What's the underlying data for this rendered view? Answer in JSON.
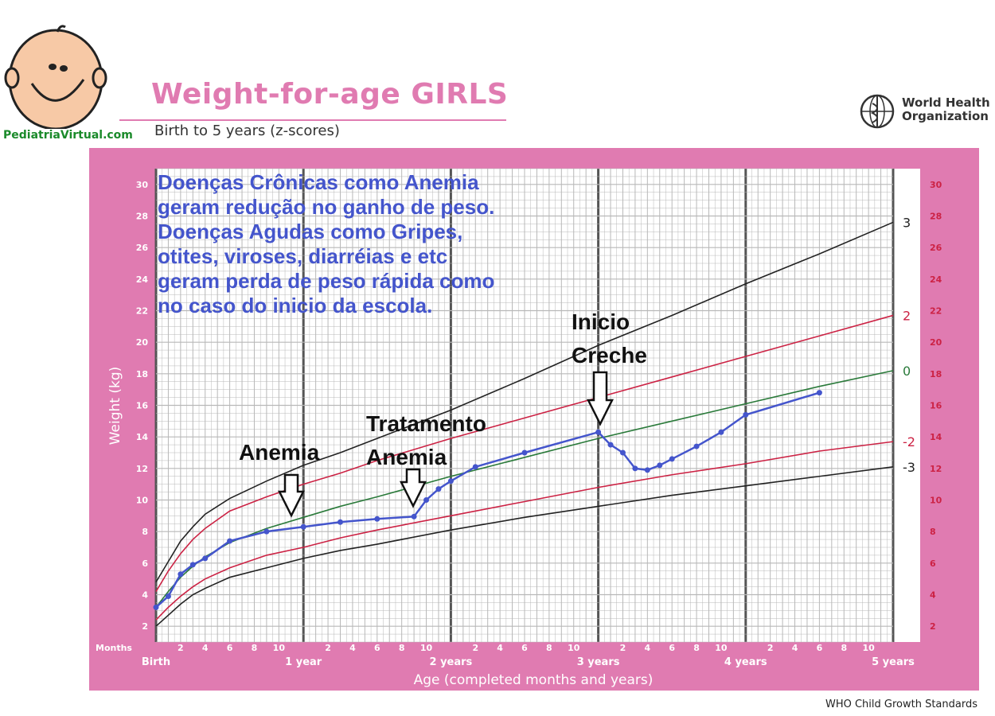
{
  "header": {
    "title": "Weight-for-age GIRLS",
    "subtitle": "Birth to 5 years (z-scores)",
    "site_name": "PediatriaVirtual.com",
    "who_line1": "World Health",
    "who_line2": "Organization"
  },
  "footer": {
    "text": "WHO Child Growth Standards"
  },
  "colors": {
    "frame": "#e07bb1",
    "plot_bg": "#ffffff",
    "grid": "#b8b8b8",
    "zscore_black": "#222222",
    "zscore_red": "#cc2244",
    "zscore_green": "#2a7a3a",
    "child_line": "#4455cc",
    "annotation_text": "#4455cc"
  },
  "chart_data": {
    "type": "line",
    "title": "Weight-for-age GIRLS",
    "subtitle": "Birth to 5 years (z-scores)",
    "xlabel": "Age (completed months and years)",
    "ylabel": "Weight (kg)",
    "months_label": "Months",
    "xlim": [
      0,
      60
    ],
    "ylim": [
      1,
      31
    ],
    "y_ticks": [
      2,
      4,
      6,
      8,
      10,
      12,
      14,
      16,
      18,
      20,
      22,
      24,
      26,
      28,
      30
    ],
    "x_month_ticks": [
      {
        "m": 2,
        "label": "2"
      },
      {
        "m": 4,
        "label": "4"
      },
      {
        "m": 6,
        "label": "6"
      },
      {
        "m": 8,
        "label": "8"
      },
      {
        "m": 10,
        "label": "10"
      },
      {
        "m": 14,
        "label": "2"
      },
      {
        "m": 16,
        "label": "4"
      },
      {
        "m": 18,
        "label": "6"
      },
      {
        "m": 20,
        "label": "8"
      },
      {
        "m": 22,
        "label": "10"
      },
      {
        "m": 26,
        "label": "2"
      },
      {
        "m": 28,
        "label": "4"
      },
      {
        "m": 30,
        "label": "6"
      },
      {
        "m": 32,
        "label": "8"
      },
      {
        "m": 34,
        "label": "10"
      },
      {
        "m": 38,
        "label": "2"
      },
      {
        "m": 40,
        "label": "4"
      },
      {
        "m": 42,
        "label": "6"
      },
      {
        "m": 44,
        "label": "8"
      },
      {
        "m": 46,
        "label": "10"
      },
      {
        "m": 50,
        "label": "2"
      },
      {
        "m": 52,
        "label": "4"
      },
      {
        "m": 54,
        "label": "6"
      },
      {
        "m": 56,
        "label": "8"
      },
      {
        "m": 58,
        "label": "10"
      }
    ],
    "x_year_ticks": [
      {
        "m": 0,
        "label": "Birth"
      },
      {
        "m": 12,
        "label": "1 year"
      },
      {
        "m": 24,
        "label": "2 years"
      },
      {
        "m": 36,
        "label": "3 years"
      },
      {
        "m": 48,
        "label": "4 years"
      },
      {
        "m": 60,
        "label": "5 years"
      }
    ],
    "zscore_curves": [
      {
        "name": "3",
        "color": "#222222",
        "x": [
          0,
          1,
          2,
          3,
          4,
          6,
          9,
          12,
          15,
          18,
          24,
          30,
          36,
          42,
          48,
          54,
          60
        ],
        "y": [
          4.8,
          6.1,
          7.4,
          8.3,
          9.1,
          10.1,
          11.2,
          12.2,
          13.0,
          13.9,
          15.7,
          17.7,
          19.8,
          21.7,
          23.7,
          25.6,
          27.6
        ]
      },
      {
        "name": "2",
        "color": "#cc2244",
        "x": [
          0,
          1,
          2,
          3,
          4,
          6,
          9,
          12,
          15,
          18,
          24,
          30,
          36,
          42,
          48,
          54,
          60
        ],
        "y": [
          4.2,
          5.5,
          6.6,
          7.5,
          8.2,
          9.3,
          10.2,
          11.0,
          11.7,
          12.5,
          13.9,
          15.2,
          16.5,
          17.8,
          19.1,
          20.4,
          21.7
        ]
      },
      {
        "name": "0",
        "color": "#2a7a3a",
        "x": [
          0,
          1,
          2,
          3,
          4,
          6,
          9,
          12,
          15,
          18,
          24,
          30,
          36,
          42,
          48,
          54,
          60
        ],
        "y": [
          3.2,
          4.2,
          5.1,
          5.8,
          6.4,
          7.3,
          8.2,
          8.9,
          9.6,
          10.2,
          11.5,
          12.7,
          13.9,
          15.0,
          16.1,
          17.2,
          18.2
        ]
      },
      {
        "name": "-2",
        "color": "#cc2244",
        "x": [
          0,
          1,
          2,
          3,
          4,
          6,
          9,
          12,
          15,
          18,
          24,
          30,
          36,
          42,
          48,
          54,
          60
        ],
        "y": [
          2.4,
          3.2,
          3.9,
          4.5,
          5.0,
          5.7,
          6.5,
          7.0,
          7.6,
          8.1,
          9.0,
          9.9,
          10.8,
          11.6,
          12.3,
          13.1,
          13.7
        ]
      },
      {
        "name": "-3",
        "color": "#222222",
        "x": [
          0,
          1,
          2,
          3,
          4,
          6,
          9,
          12,
          15,
          18,
          24,
          30,
          36,
          42,
          48,
          54,
          60
        ],
        "y": [
          2.0,
          2.7,
          3.4,
          4.0,
          4.4,
          5.1,
          5.7,
          6.3,
          6.8,
          7.2,
          8.1,
          8.9,
          9.6,
          10.3,
          10.9,
          11.5,
          12.1
        ]
      }
    ],
    "child_series": {
      "name": "",
      "color": "#4455cc",
      "x": [
        0,
        1,
        2,
        3,
        4,
        6,
        9,
        12,
        15,
        18,
        21,
        22,
        23,
        24,
        26,
        30,
        36,
        37,
        38,
        39,
        40,
        41,
        42,
        44,
        46,
        48,
        54
      ],
      "y": [
        3.2,
        3.9,
        5.3,
        5.9,
        6.3,
        7.4,
        8.0,
        8.3,
        8.6,
        8.8,
        8.95,
        10.0,
        10.7,
        11.2,
        12.1,
        13.0,
        14.3,
        13.5,
        13.0,
        12.0,
        11.9,
        12.2,
        12.6,
        13.4,
        14.3,
        15.4,
        16.8
      ]
    },
    "annotations": {
      "main_text": [
        "Doenças Crônicas como Anemia",
        "geram redução no ganho de peso.",
        "Doenças Agudas como Gripes,",
        "otites, viroses, diarréias e etc",
        "geram perda de peso rápida como",
        "no caso do inicio da escola."
      ],
      "anemia": "Anemia",
      "tratamento_1": "Tratamento",
      "tratamento_2": "Anemia",
      "creche_1": "Inicio",
      "creche_2": "Creche"
    }
  }
}
